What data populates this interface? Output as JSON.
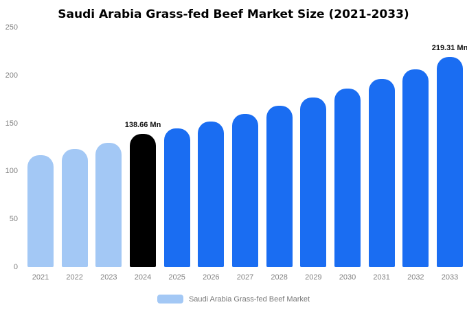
{
  "chart_data": {
    "type": "bar",
    "title": "Saudi Arabia Grass-fed Beef Market Size (2021-2033)",
    "xlabel": "",
    "ylabel": "",
    "unit": "Mn",
    "categories": [
      "2021",
      "2022",
      "2023",
      "2024",
      "2025",
      "2026",
      "2027",
      "2028",
      "2029",
      "2030",
      "2031",
      "2032",
      "2033"
    ],
    "values": [
      117,
      123,
      130,
      138.66,
      145,
      152,
      160,
      168,
      177,
      186,
      196,
      206,
      219.31
    ],
    "bar_colors": [
      "#a3c8f5",
      "#a3c8f5",
      "#a3c8f5",
      "#000000",
      "#1a6df2",
      "#1a6df2",
      "#1a6df2",
      "#1a6df2",
      "#1a6df2",
      "#1a6df2",
      "#1a6df2",
      "#1a6df2",
      "#1a6df2"
    ],
    "annotations": [
      {
        "index": 3,
        "text": "138.66 Mn"
      },
      {
        "index": 12,
        "text": "219.31 Mn"
      }
    ],
    "ylim": [
      0,
      250
    ],
    "yticks": [
      0,
      50,
      100,
      150,
      200,
      250
    ],
    "grid": false,
    "legend_position": "bottom",
    "legend": [
      {
        "label": "Saudi Arabia Grass-fed Beef Market",
        "color": "#a3c8f5"
      }
    ]
  }
}
